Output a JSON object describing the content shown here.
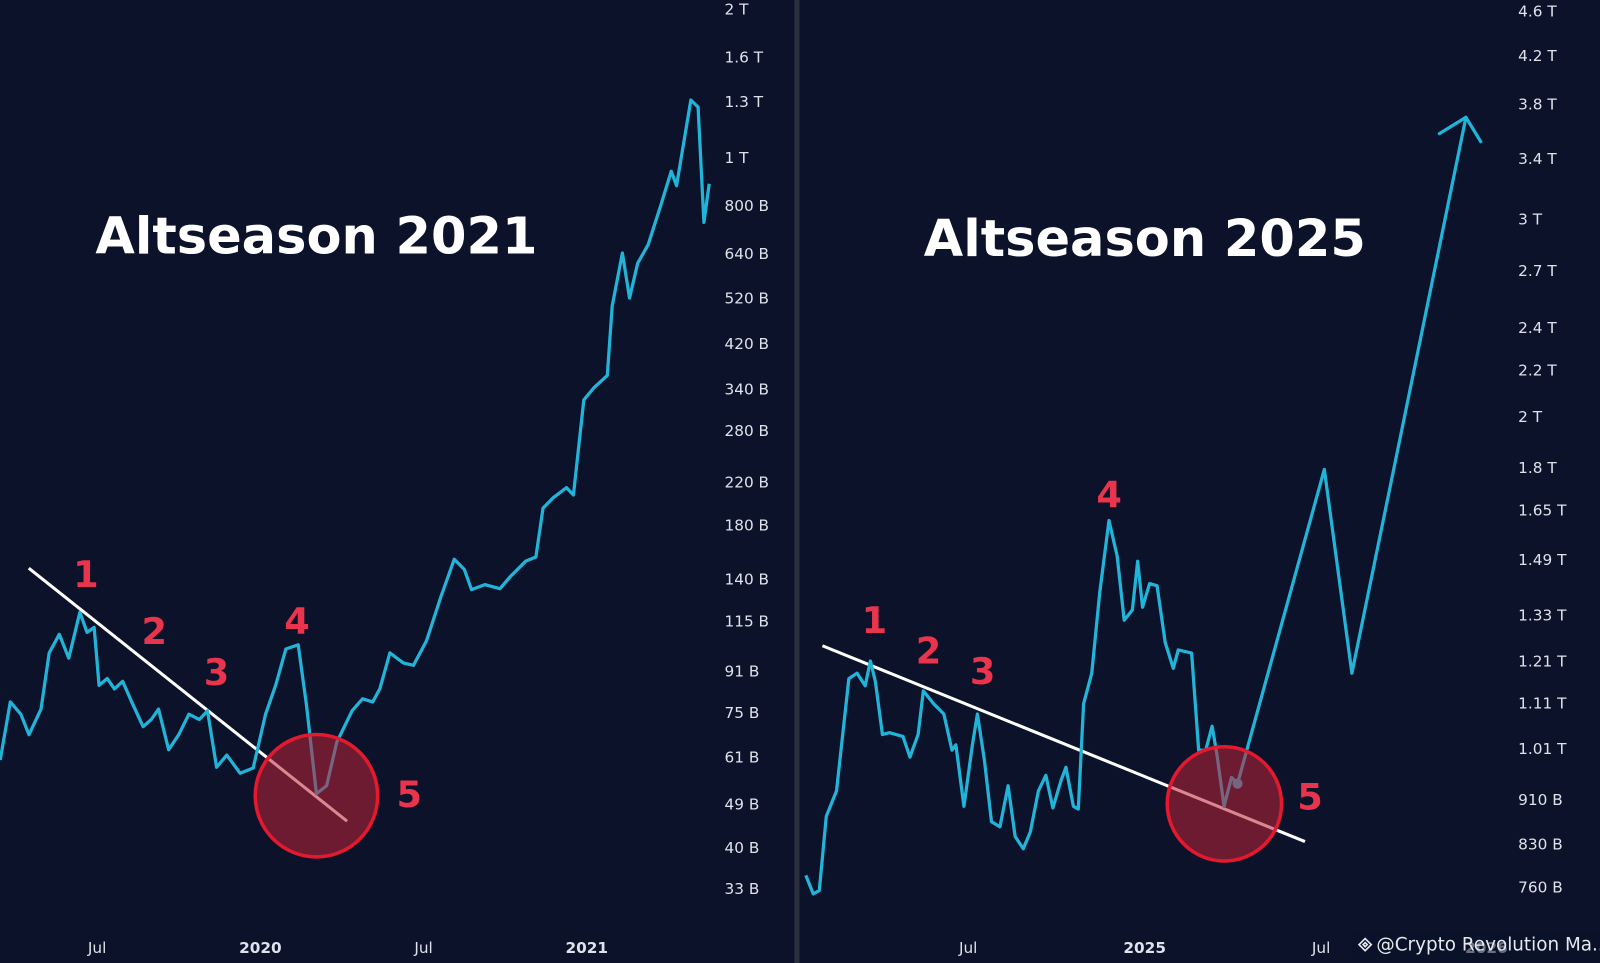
{
  "chart_data": [
    {
      "type": "line",
      "title": "Altseason 2021",
      "log_y": true,
      "xlim": [
        2019.203,
        2021.397
      ],
      "ylim": [
        28.2,
        2098
      ],
      "xticks": [
        {
          "value": 2019.5,
          "label": "Jul"
        },
        {
          "value": 2020,
          "label": "2020"
        },
        {
          "value": 2020.5,
          "label": "Jul"
        },
        {
          "value": 2021,
          "label": "2021"
        }
      ],
      "yticks": [
        {
          "value": 2000,
          "label": "2 T"
        },
        {
          "value": 1600,
          "label": "1.6 T"
        },
        {
          "value": 1300,
          "label": "1.3 T"
        },
        {
          "value": 1000,
          "label": "1 T"
        },
        {
          "value": 800,
          "label": "800 B"
        },
        {
          "value": 640,
          "label": "640 B"
        },
        {
          "value": 520,
          "label": "520 B"
        },
        {
          "value": 420,
          "label": "420 B"
        },
        {
          "value": 340,
          "label": "340 B"
        },
        {
          "value": 280,
          "label": "280 B"
        },
        {
          "value": 220,
          "label": "220 B"
        },
        {
          "value": 180,
          "label": "180 B"
        },
        {
          "value": 140,
          "label": "140 B"
        },
        {
          "value": 115,
          "label": "115 B"
        },
        {
          "value": 91,
          "label": "91 B"
        },
        {
          "value": 75,
          "label": "75 B"
        },
        {
          "value": 61,
          "label": "61 B"
        },
        {
          "value": 49,
          "label": "49 B"
        },
        {
          "value": 40,
          "label": "40 B"
        },
        {
          "value": 33,
          "label": "33 B"
        }
      ],
      "series": [
        {
          "color": "#22b4d8",
          "x": [
            2019.203,
            2019.234,
            2019.266,
            2019.291,
            2019.328,
            2019.353,
            2019.384,
            2019.413,
            2019.447,
            2019.469,
            2019.491,
            2019.506,
            2019.531,
            2019.553,
            2019.578,
            2019.609,
            2019.641,
            2019.666,
            2019.688,
            2019.719,
            2019.75,
            2019.781,
            2019.813,
            2019.838,
            2019.866,
            2019.897,
            2019.938,
            2019.978,
            2020.016,
            2020.047,
            2020.078,
            2020.116,
            2020.141,
            2020.172,
            2020.203,
            2020.234,
            2020.281,
            2020.313,
            2020.344,
            2020.366,
            2020.397,
            2020.438,
            2020.469,
            2020.509,
            2020.553,
            2020.594,
            2020.625,
            2020.647,
            2020.688,
            2020.734,
            2020.766,
            2020.813,
            2020.844,
            2020.866,
            2020.897,
            2020.938,
            2020.959,
            2020.991,
            2021.022,
            2021.063,
            2021.078,
            2021.109,
            2021.131,
            2021.156,
            2021.188,
            2021.228,
            2021.259,
            2021.275,
            2021.319,
            2021.341,
            2021.359,
            2021.375
          ],
          "values": [
            60.4,
            79.2,
            74.8,
            68,
            76.6,
            99.6,
            108.6,
            97.2,
            120.4,
            109.6,
            112.2,
            85.6,
            88.4,
            84.2,
            87.2,
            78.4,
            70.6,
            73,
            76.6,
            63.4,
            68,
            74.8,
            73,
            76,
            58.4,
            61.8,
            56.8,
            58.2,
            74.8,
            85.6,
            101.4,
            103.4,
            78.4,
            51.6,
            53.6,
            65.6,
            76,
            80.4,
            79.2,
            84.2,
            99.6,
            95,
            94,
            105.4,
            129.4,
            154.2,
            147,
            133.8,
            137,
            134.4,
            142.2,
            152.8,
            155.8,
            195.8,
            205.4,
            215.4,
            208.2,
            324.4,
            343.4,
            363.6,
            502.6,
            644,
            522,
            614,
            669,
            809,
            943,
            882,
            1315,
            1273,
            743,
            890
          ]
        }
      ],
      "annotations": [
        "1",
        "2",
        "3",
        "4",
        "5"
      ]
    },
    {
      "type": "line",
      "title": "Altseason 2025",
      "log_y": true,
      "xlim": [
        2024.035,
        2026.035
      ],
      "ylim": [
        707,
        4717
      ],
      "xticks": [
        {
          "value": 2024.5,
          "label": "Jul"
        },
        {
          "value": 2025,
          "label": "2025"
        },
        {
          "value": 2025.5,
          "label": "Jul"
        },
        {
          "value": 2025.968,
          "label": "2026"
        }
      ],
      "yticks": [
        {
          "value": 4600,
          "label": "4.6 T"
        },
        {
          "value": 4200,
          "label": "4.2 T"
        },
        {
          "value": 3800,
          "label": "3.8 T"
        },
        {
          "value": 3400,
          "label": "3.4 T"
        },
        {
          "value": 3000,
          "label": "3 T"
        },
        {
          "value": 2700,
          "label": "2.7 T"
        },
        {
          "value": 2400,
          "label": "2.4 T"
        },
        {
          "value": 2200,
          "label": "2.2 T"
        },
        {
          "value": 2000,
          "label": "2 T"
        },
        {
          "value": 1800,
          "label": "1.8 T"
        },
        {
          "value": 1650,
          "label": "1.65 T"
        },
        {
          "value": 1490,
          "label": "1.49 T"
        },
        {
          "value": 1330,
          "label": "1.33 T"
        },
        {
          "value": 1210,
          "label": "1.21 T"
        },
        {
          "value": 1110,
          "label": "1.11 T"
        },
        {
          "value": 1010,
          "label": "1.01 T"
        },
        {
          "value": 910,
          "label": "910 B"
        },
        {
          "value": 830,
          "label": "830 B"
        },
        {
          "value": 760,
          "label": "760 B"
        }
      ],
      "series": [
        {
          "color": "#22b4d8",
          "end_dot": true,
          "x": [
            2024.04,
            2024.061,
            2024.078,
            2024.098,
            2024.127,
            2024.162,
            2024.185,
            2024.208,
            2024.223,
            2024.237,
            2024.257,
            2024.277,
            2024.315,
            2024.335,
            2024.358,
            2024.373,
            2024.402,
            2024.431,
            2024.454,
            2024.465,
            2024.488,
            2024.512,
            2024.526,
            2024.546,
            2024.566,
            2024.59,
            2024.613,
            2024.633,
            2024.656,
            2024.676,
            2024.699,
            2024.72,
            2024.74,
            2024.763,
            2024.777,
            2024.798,
            2024.812,
            2024.827,
            2024.85,
            2024.873,
            2024.899,
            2024.922,
            2024.942,
            2024.965,
            2024.98,
            2024.994,
            2025.014,
            2025.035,
            2025.058,
            2025.081,
            2025.095,
            2025.133,
            2025.153,
            2025.173,
            2025.191,
            2025.205,
            2025.225,
            2025.246,
            2025.263
          ],
          "values": [
            780,
            751,
            756,
            881,
            928,
            1169,
            1182,
            1152,
            1212,
            1162,
            1042,
            1046,
            1038,
            995,
            1042,
            1140,
            1110,
            1087,
            1009,
            1020,
            899,
            1020,
            1087,
            988,
            871,
            862,
            938,
            845,
            824,
            853,
            928,
            958,
            896,
            948,
            974,
            899,
            894,
            1110,
            1182,
            1397,
            1618,
            1504,
            1318,
            1346,
            1488,
            1354,
            1421,
            1415,
            1259,
            1194,
            1240,
            1232,
            1009,
            1009,
            1060,
            999,
            899,
            954,
            942
          ]
        },
        {
          "color": "#22b4d8",
          "arrow": true,
          "x": [
            2025.263,
            2025.509,
            2025.587,
            2025.91,
            2025.954
          ],
          "values": [
            942,
            1797,
            1182,
            3706,
            3517
          ]
        }
      ],
      "annotations": [
        "1",
        "2",
        "3",
        "4",
        "5"
      ]
    }
  ],
  "watermark": "@Crypto Revolution Ma..."
}
